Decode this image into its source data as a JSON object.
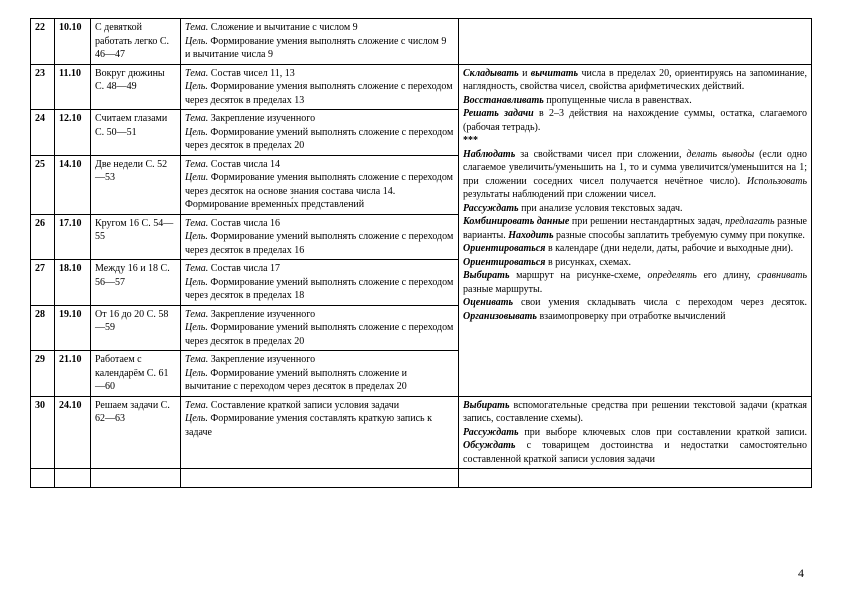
{
  "page_number": "4",
  "rows": [
    {
      "num": "22",
      "date": "10.10",
      "col3": "С девяткой работать легко С. 46—47",
      "col4": "<i>Тема.</i> Сложение и вычитание с числом 9<br><i>Цель.</i> Формирование умения выполнять сложение с числом 9 и вычитание числа 9",
      "col5": ""
    },
    {
      "num": "23",
      "date": "11.10",
      "col3": "Вокруг дюжины С. 48—49",
      "col4": "<i>Тема.</i> Состав чисел 11, 13<br><i>Цель.</i> Формирование умения выполнять сложение с переходом через десяток в пределах 13",
      "col5_rowspan": 7,
      "col5": "<span class='bi'>Складывать</span> и <span class='bi'>вычитать</span> числа в пределах 20, ориентируясь на запоминание, наглядность, свойства чисел, свойства арифметических действий.<br><span class='bi'>Восстанавливать</span> пропущенные числа в равенствах.<br><span class='bi'>Решать задачи</span> в 2–3 действия на нахождение суммы, остатка, слагаемого (рабочая тетрадь).<br><b>***</b><br><span class='bi'>Наблюдать</span> за свойствами чисел при сложении, <i>делать выводы</i> (если одно слагаемое увеличить/уменьшить на 1, то и сумма увеличится/уменьшится на 1; при сложении соседних чисел получается нечётное число). <i>Использовать</i> результаты наблюдений при сложении чисел.<br><span class='bi'>Рассуждать</span> при анализе условия текстовых задач.<br><span class='bi'>Комбинировать данные</span> при решении нестандартных задач, <i>предлагать</i> разные варианты. <span class='bi'>Находить</span> разные способы заплатить требуемую сумму при покупке.<br><span class='bi'>Ориентироваться</span> в календаре (дни недели, даты, рабочие и выходные дни).<br><span class='bi'>Ориентироваться</span> в рисунках, схемах.<br><span class='bi'>Выбирать</span> маршрут на рисунке-схеме, <i>определять</i> его длину, <i>сравнивать</i> разные маршруты.<br><span class='bi'>Оценивать</span> свои умения складывать числа с переходом через десяток. <span class='bi'>Организовывать</span> взаимопроверку при отработке вычислений"
    },
    {
      "num": "24",
      "date": "12.10",
      "col3": "Считаем глазами С. 50—51",
      "col4": "<i>Тема.</i> Закрепление изученного<br><i>Цель.</i> Формирование умений выполнять сложение с переходом через десяток в пределах 20"
    },
    {
      "num": "25",
      "date": "14.10",
      "col3": "Две недели С. 52—53",
      "col4": "<i>Тема.</i> Состав числа 14<br><i>Цели.</i> Формирование умения выполнять сложение с переходом через десяток на основе знания состава числа 14. Формирование временны́х представлений"
    },
    {
      "num": "26",
      "date": "17.10",
      "col3": "Кругом 16 С. 54—55",
      "col4": "<i>Тема.</i> Состав числа 16<br><i>Цель.</i> Формирование умений выполнять сложение с переходом через десяток в пределах 16"
    },
    {
      "num": "27",
      "date": "18.10",
      "col3": "Между 16 и 18 С. 56—57",
      "col4": "<i>Тема.</i> Состав числа 17<br><i>Цель.</i> Формирование умений выполнять сложение с переходом через десяток в пределах 18"
    },
    {
      "num": "28",
      "date": "19.10",
      "col3": "От 16 до 20 С. 58—59",
      "col4": "<i>Тема.</i> Закрепление изученного<br><i>Цель.</i> Формирование умений выполнять сложение с переходом через десяток в пределах 20"
    },
    {
      "num": "29",
      "date": "21.10",
      "col3": "Работаем с календарём С. 61—60",
      "col4": "<i>Тема.</i> Закрепление изученного<br><i>Цель.</i> Формирование умений выполнять сложение и вычитание с переходом через десяток в пределах 20"
    },
    {
      "num": "30",
      "date": "24.10",
      "col3": "Решаем задачи С. 62—63",
      "col4": "<i>Тема.</i> Составление краткой записи условия задачи<br><i>Цель.</i> Формирование умения составлять краткую запись к задаче",
      "col5": "<span class='bi'>Выбирать</span> вспомогательные средства при решении текстовой задачи (краткая запись, составление схемы).<br><span class='bi'>Рассуждать</span> при выборе ключевых слов при составлении краткой записи. <span class='bi'>Обсуждать</span> с товарищем достоинства и недостатки самостоятельно составленной краткой записи условия задачи"
    },
    {
      "blank": true
    }
  ]
}
